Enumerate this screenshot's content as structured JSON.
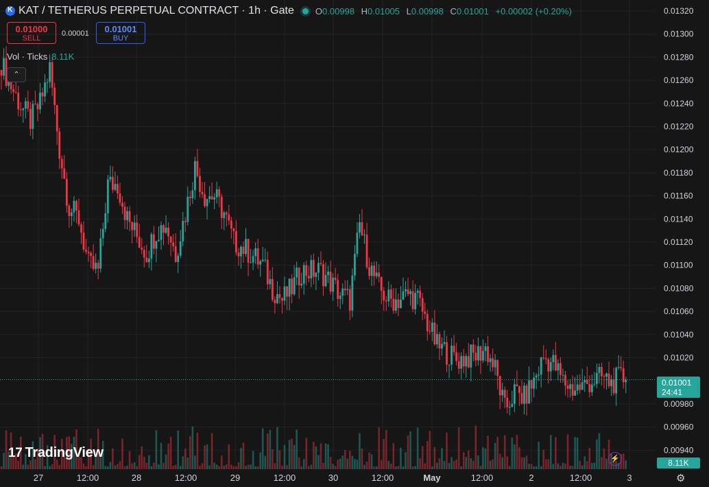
{
  "header": {
    "title": "KAT / TETHERUS PERPETUAL CONTRACT · 1h · Gate",
    "ohlc": [
      {
        "k": "O",
        "v": "0.00998"
      },
      {
        "k": "H",
        "v": "0.01005"
      },
      {
        "k": "L",
        "v": "0.00998"
      },
      {
        "k": "C",
        "v": "0.01001"
      }
    ],
    "change": "+0.00002 (+0.20%)"
  },
  "trade": {
    "sell_price": "0.01000",
    "sell_label": "SELL",
    "spread": "0.00001",
    "buy_price": "0.01001",
    "buy_label": "BUY"
  },
  "volume_legend": {
    "label": "Vol · Ticks",
    "value": "8.11K"
  },
  "collapse_icon": "chevron-up",
  "branding": {
    "logo_text": "TradingView",
    "logo_mark": "17"
  },
  "last_price": {
    "price": "0.01001",
    "countdown": "24:41"
  },
  "last_volume": "8.11K",
  "colors": {
    "up": "#26a69a",
    "down": "#f23645",
    "background": "#161616",
    "grid": "#232323",
    "text": "#d1d4dc"
  },
  "chart_data": {
    "type": "candlestick",
    "interval": "1h",
    "y_ticks": [
      "0.01320",
      "0.01300",
      "0.01280",
      "0.01260",
      "0.01240",
      "0.01220",
      "0.01200",
      "0.01180",
      "0.01160",
      "0.01140",
      "0.01120",
      "0.01100",
      "0.01080",
      "0.01060",
      "0.01040",
      "0.01020",
      "0.00980",
      "0.00960",
      "0.00940"
    ],
    "x_ticks": [
      "27",
      "12:00",
      "28",
      "12:00",
      "29",
      "12:00",
      "30",
      "12:00",
      "May",
      "12:00",
      "2",
      "12:00",
      "3"
    ],
    "ylim": [
      0.00935,
      0.01325
    ],
    "close_points": [
      {
        "t": 0,
        "c": 0.01275
      },
      {
        "t": 4,
        "c": 0.01255
      },
      {
        "t": 8,
        "c": 0.01238
      },
      {
        "t": 12,
        "c": 0.01225
      },
      {
        "t": 16,
        "c": 0.0124
      },
      {
        "t": 20,
        "c": 0.0127
      },
      {
        "t": 24,
        "c": 0.012
      },
      {
        "t": 28,
        "c": 0.0115
      },
      {
        "t": 32,
        "c": 0.0114
      },
      {
        "t": 36,
        "c": 0.011
      },
      {
        "t": 40,
        "c": 0.01095
      },
      {
        "t": 44,
        "c": 0.0117
      },
      {
        "t": 48,
        "c": 0.0117
      },
      {
        "t": 52,
        "c": 0.0114
      },
      {
        "t": 56,
        "c": 0.01125
      },
      {
        "t": 60,
        "c": 0.0111
      },
      {
        "t": 64,
        "c": 0.0113
      },
      {
        "t": 68,
        "c": 0.01135
      },
      {
        "t": 72,
        "c": 0.0111
      },
      {
        "t": 76,
        "c": 0.01145
      },
      {
        "t": 80,
        "c": 0.01185
      },
      {
        "t": 84,
        "c": 0.0116
      },
      {
        "t": 88,
        "c": 0.0116
      },
      {
        "t": 92,
        "c": 0.01145
      },
      {
        "t": 96,
        "c": 0.0112
      },
      {
        "t": 100,
        "c": 0.01115
      },
      {
        "t": 104,
        "c": 0.01108
      },
      {
        "t": 108,
        "c": 0.011
      },
      {
        "t": 112,
        "c": 0.0108
      },
      {
        "t": 116,
        "c": 0.0107
      },
      {
        "t": 120,
        "c": 0.0108
      },
      {
        "t": 124,
        "c": 0.01095
      },
      {
        "t": 128,
        "c": 0.01095
      },
      {
        "t": 132,
        "c": 0.01095
      },
      {
        "t": 136,
        "c": 0.01085
      },
      {
        "t": 140,
        "c": 0.01075
      },
      {
        "t": 144,
        "c": 0.0107
      },
      {
        "t": 148,
        "c": 0.01135
      },
      {
        "t": 152,
        "c": 0.011
      },
      {
        "t": 156,
        "c": 0.0108
      },
      {
        "t": 160,
        "c": 0.0107
      },
      {
        "t": 164,
        "c": 0.0107
      },
      {
        "t": 168,
        "c": 0.01075
      },
      {
        "t": 172,
        "c": 0.0107
      },
      {
        "t": 176,
        "c": 0.0105
      },
      {
        "t": 180,
        "c": 0.0103
      },
      {
        "t": 184,
        "c": 0.01025
      },
      {
        "t": 188,
        "c": 0.01018
      },
      {
        "t": 192,
        "c": 0.0102
      },
      {
        "t": 196,
        "c": 0.01022
      },
      {
        "t": 200,
        "c": 0.01028
      },
      {
        "t": 204,
        "c": 0.0101
      },
      {
        "t": 208,
        "c": 0.00975
      },
      {
        "t": 212,
        "c": 0.0099
      },
      {
        "t": 216,
        "c": 0.00985
      },
      {
        "t": 220,
        "c": 0.01
      },
      {
        "t": 224,
        "c": 0.0102
      },
      {
        "t": 228,
        "c": 0.01015
      },
      {
        "t": 232,
        "c": 0.01
      },
      {
        "t": 236,
        "c": 0.00993
      },
      {
        "t": 240,
        "c": 0.00995
      },
      {
        "t": 244,
        "c": 0.01
      },
      {
        "t": 248,
        "c": 0.01003
      },
      {
        "t": 252,
        "c": 0.00998
      },
      {
        "t": 256,
        "c": 0.01003
      },
      {
        "t": 258,
        "c": 0.01001
      }
    ]
  }
}
